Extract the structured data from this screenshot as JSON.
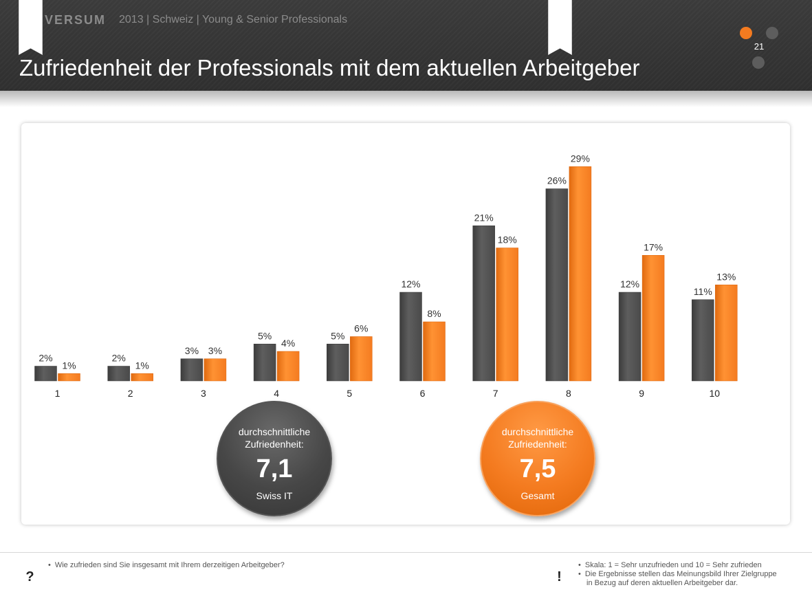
{
  "header": {
    "brand": "UNIVERSUM",
    "subtitle": "2013 | Schweiz | Young & Senior Professionals",
    "title": "Zufriedenheit der Professionals mit dem aktuellen Arbeitgeber",
    "page_number": "21"
  },
  "colors": {
    "series_dark": "#4a4a4a",
    "series_orange": "#f47b20",
    "header_bg": "#333333"
  },
  "chart_data": {
    "type": "bar",
    "title": "",
    "xlabel": "",
    "ylabel": "",
    "ylim": [
      0,
      30
    ],
    "grid": false,
    "categories": [
      "1",
      "2",
      "3",
      "4",
      "5",
      "6",
      "7",
      "8",
      "9",
      "10"
    ],
    "series": [
      {
        "color": "#4a4a4a",
        "values": [
          2,
          2,
          3,
          5,
          5,
          12,
          21,
          26,
          12,
          11
        ],
        "labels": [
          "2%",
          "2%",
          "3%",
          "5%",
          "5%",
          "12%",
          "21%",
          "26%",
          "12%",
          "11%"
        ]
      },
      {
        "color": "#f47b20",
        "values": [
          1,
          1,
          3,
          4,
          6,
          8,
          18,
          29,
          17,
          13
        ],
        "labels": [
          "1%",
          "1%",
          "3%",
          "4%",
          "6%",
          "8%",
          "18%",
          "29%",
          "17%",
          "13%"
        ]
      }
    ]
  },
  "averages": [
    {
      "caption_line1": "durchschnittliche",
      "caption_line2": "Zufriedenheit:",
      "value": "7,1",
      "group": "Swiss IT"
    },
    {
      "caption_line1": "durchschnittliche",
      "caption_line2": "Zufriedenheit:",
      "value": "7,5",
      "group": "Gesamt"
    }
  ],
  "footer": {
    "question_glyph": "?",
    "question_text": "Wie zufrieden sind Sie insgesamt mit Ihrem derzeitigen Arbeitgeber?",
    "note_glyph": "!",
    "note_scale": "Skala: 1 = Sehr unzufrieden und 10 = Sehr zufrieden",
    "note_results_line1": "Die Ergebnisse stellen das Meinungsbild Ihrer Zielgruppe",
    "note_results_line2": "in Bezug auf deren aktuellen Arbeitgeber dar."
  }
}
